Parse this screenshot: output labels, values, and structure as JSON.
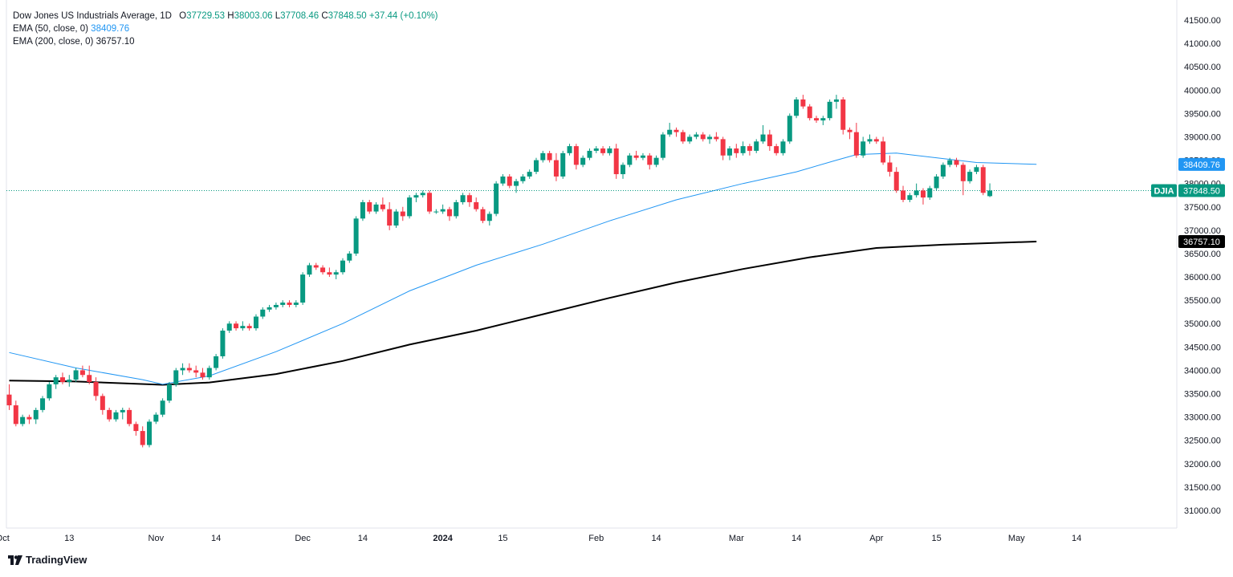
{
  "legend": {
    "title": "Dow Jones US Industrials Average, 1D",
    "o_label": "O",
    "o_val": "37729.53",
    "h_label": "H",
    "h_val": "38003.06",
    "l_label": "L",
    "l_val": "37708.46",
    "c_label": "C",
    "c_val": "37848.50",
    "change": "+37.44 (+0.10%)",
    "ema50_label": "EMA (50, close, 0)",
    "ema50_val": "38409.76",
    "ema200_label": "EMA (200, close, 0)",
    "ema200_val": "36757.10"
  },
  "brand": "TradingView",
  "colors": {
    "up": "#089981",
    "down": "#f23645",
    "ema50": "#2196f3",
    "ema200": "#000000",
    "grid": "#f0f3fa",
    "text": "#131722"
  },
  "chart_data": {
    "type": "candlestick",
    "title": "Dow Jones US Industrials Average, 1D",
    "ylim": [
      30750,
      41750
    ],
    "y_ticks": [
      31000,
      31500,
      32000,
      32500,
      33000,
      33500,
      34000,
      34500,
      35000,
      35500,
      36000,
      36500,
      37000,
      37500,
      38000,
      38500,
      39000,
      39500,
      40000,
      40500,
      41000,
      41500
    ],
    "x_ticks": [
      {
        "label": "Oct",
        "index": -1
      },
      {
        "label": "13",
        "index": 9
      },
      {
        "label": "Nov",
        "index": 22
      },
      {
        "label": "14",
        "index": 31
      },
      {
        "label": "Dec",
        "index": 44
      },
      {
        "label": "14",
        "index": 53
      },
      {
        "label": "2024",
        "index": 65,
        "bold": true
      },
      {
        "label": "15",
        "index": 74
      },
      {
        "label": "Feb",
        "index": 88
      },
      {
        "label": "14",
        "index": 97
      },
      {
        "label": "Mar",
        "index": 109
      },
      {
        "label": "14",
        "index": 118
      },
      {
        "label": "Apr",
        "index": 130
      },
      {
        "label": "15",
        "index": 139
      },
      {
        "label": "May",
        "index": 151
      },
      {
        "label": "14",
        "index": 160
      }
    ],
    "candles": [
      [
        33480,
        33700,
        33150,
        33250
      ],
      [
        33250,
        33350,
        32800,
        32850
      ],
      [
        32850,
        33050,
        32800,
        33000
      ],
      [
        33000,
        33050,
        32850,
        32950
      ],
      [
        32950,
        33200,
        32850,
        33150
      ],
      [
        33150,
        33450,
        33100,
        33400
      ],
      [
        33400,
        33750,
        33350,
        33700
      ],
      [
        33700,
        33900,
        33600,
        33850
      ],
      [
        33850,
        33950,
        33700,
        33750
      ],
      [
        33750,
        33900,
        33650,
        33800
      ],
      [
        33800,
        34050,
        33750,
        34000
      ],
      [
        34000,
        34100,
        33850,
        33900
      ],
      [
        33900,
        34100,
        33700,
        33750
      ],
      [
        33750,
        33850,
        33350,
        33450
      ],
      [
        33450,
        33500,
        33050,
        33150
      ],
      [
        33150,
        33200,
        32900,
        32950
      ],
      [
        32950,
        33150,
        32900,
        33100
      ],
      [
        33100,
        33200,
        32950,
        33150
      ],
      [
        33150,
        33200,
        32800,
        32850
      ],
      [
        32850,
        32900,
        32600,
        32700
      ],
      [
        32700,
        32800,
        32350,
        32400
      ],
      [
        32400,
        32950,
        32350,
        32900
      ],
      [
        32900,
        33100,
        32850,
        33050
      ],
      [
        33050,
        33400,
        33000,
        33350
      ],
      [
        33350,
        33750,
        33300,
        33700
      ],
      [
        33700,
        34050,
        33650,
        34000
      ],
      [
        34000,
        34150,
        33900,
        34050
      ],
      [
        34050,
        34150,
        33950,
        34000
      ],
      [
        34000,
        34100,
        33850,
        33950
      ],
      [
        33950,
        34050,
        33800,
        33850
      ],
      [
        33850,
        34100,
        33800,
        34050
      ],
      [
        34050,
        34350,
        34000,
        34300
      ],
      [
        34300,
        34900,
        34250,
        34850
      ],
      [
        34850,
        35050,
        34800,
        35000
      ],
      [
        35000,
        35050,
        34850,
        34900
      ],
      [
        34900,
        35050,
        34850,
        34950
      ],
      [
        34950,
        35000,
        34850,
        34900
      ],
      [
        34900,
        35200,
        34850,
        35150
      ],
      [
        35150,
        35350,
        35100,
        35300
      ],
      [
        35300,
        35400,
        35250,
        35350
      ],
      [
        35350,
        35450,
        35300,
        35400
      ],
      [
        35400,
        35500,
        35350,
        35450
      ],
      [
        35450,
        35500,
        35350,
        35400
      ],
      [
        35400,
        35500,
        35350,
        35450
      ],
      [
        35450,
        36100,
        35400,
        36050
      ],
      [
        36050,
        36300,
        36000,
        36250
      ],
      [
        36250,
        36300,
        36150,
        36200
      ],
      [
        36200,
        36250,
        36050,
        36100
      ],
      [
        36100,
        36200,
        36000,
        36050
      ],
      [
        36050,
        36150,
        35950,
        36100
      ],
      [
        36100,
        36400,
        36050,
        36350
      ],
      [
        36350,
        36550,
        36300,
        36500
      ],
      [
        36500,
        37300,
        36450,
        37250
      ],
      [
        37250,
        37650,
        37200,
        37600
      ],
      [
        37600,
        37650,
        37350,
        37400
      ],
      [
        37400,
        37600,
        37350,
        37550
      ],
      [
        37550,
        37700,
        37400,
        37450
      ],
      [
        37450,
        37600,
        37000,
        37100
      ],
      [
        37100,
        37450,
        37050,
        37400
      ],
      [
        37400,
        37500,
        37200,
        37300
      ],
      [
        37300,
        37750,
        37250,
        37700
      ],
      [
        37700,
        37800,
        37600,
        37750
      ],
      [
        37750,
        37850,
        37700,
        37800
      ],
      [
        37800,
        37850,
        37350,
        37400
      ],
      [
        37400,
        37450,
        37350,
        37400
      ],
      [
        37400,
        37550,
        37350,
        37450
      ],
      [
        37450,
        37500,
        37200,
        37300
      ],
      [
        37300,
        37650,
        37250,
        37600
      ],
      [
        37600,
        37800,
        37550,
        37750
      ],
      [
        37750,
        37800,
        37500,
        37600
      ],
      [
        37600,
        37700,
        37400,
        37450
      ],
      [
        37450,
        37500,
        37150,
        37200
      ],
      [
        37200,
        37400,
        37100,
        37350
      ],
      [
        37350,
        38050,
        37300,
        38000
      ],
      [
        38000,
        38200,
        37950,
        38150
      ],
      [
        38150,
        38200,
        37900,
        37950
      ],
      [
        37950,
        38100,
        37800,
        38050
      ],
      [
        38050,
        38200,
        38000,
        38150
      ],
      [
        38150,
        38300,
        38100,
        38250
      ],
      [
        38250,
        38550,
        38200,
        38500
      ],
      [
        38500,
        38700,
        38450,
        38650
      ],
      [
        38650,
        38700,
        38450,
        38500
      ],
      [
        38500,
        38650,
        38050,
        38150
      ],
      [
        38150,
        38700,
        38100,
        38650
      ],
      [
        38650,
        38850,
        38600,
        38800
      ],
      [
        38800,
        38850,
        38300,
        38400
      ],
      [
        38400,
        38600,
        38350,
        38550
      ],
      [
        38550,
        38750,
        38500,
        38700
      ],
      [
        38700,
        38800,
        38650,
        38750
      ],
      [
        38750,
        38800,
        38600,
        38650
      ],
      [
        38650,
        38800,
        38600,
        38750
      ],
      [
        38750,
        38850,
        38100,
        38200
      ],
      [
        38200,
        38450,
        38100,
        38400
      ],
      [
        38400,
        38650,
        38350,
        38600
      ],
      [
        38600,
        38700,
        38500,
        38550
      ],
      [
        38550,
        38650,
        38500,
        38600
      ],
      [
        38600,
        38650,
        38300,
        38400
      ],
      [
        38400,
        38600,
        38350,
        38550
      ],
      [
        38550,
        39100,
        38500,
        39050
      ],
      [
        39050,
        39300,
        39000,
        39150
      ],
      [
        39150,
        39200,
        39000,
        39100
      ],
      [
        39100,
        39150,
        38850,
        38900
      ],
      [
        38900,
        39050,
        38850,
        39000
      ],
      [
        39000,
        39100,
        38950,
        39050
      ],
      [
        39050,
        39100,
        38900,
        38950
      ],
      [
        38950,
        39050,
        38850,
        39000
      ],
      [
        39000,
        39100,
        38900,
        38950
      ],
      [
        38950,
        39000,
        38500,
        38600
      ],
      [
        38600,
        38800,
        38500,
        38750
      ],
      [
        38750,
        38850,
        38550,
        38650
      ],
      [
        38650,
        38900,
        38600,
        38800
      ],
      [
        38800,
        38850,
        38600,
        38700
      ],
      [
        38700,
        38950,
        38650,
        38900
      ],
      [
        38900,
        39250,
        38850,
        39050
      ],
      [
        39050,
        39150,
        38700,
        38800
      ],
      [
        38800,
        38850,
        38600,
        38650
      ],
      [
        38650,
        38950,
        38600,
        38900
      ],
      [
        38900,
        39500,
        38850,
        39450
      ],
      [
        39450,
        39850,
        39400,
        39800
      ],
      [
        39800,
        39900,
        39600,
        39650
      ],
      [
        39650,
        39700,
        39350,
        39400
      ],
      [
        39400,
        39450,
        39300,
        39350
      ],
      [
        39350,
        39450,
        39250,
        39400
      ],
      [
        39400,
        39800,
        39350,
        39750
      ],
      [
        39750,
        39900,
        39600,
        39800
      ],
      [
        39800,
        39850,
        39050,
        39150
      ],
      [
        39150,
        39200,
        38950,
        39100
      ],
      [
        39100,
        39300,
        38550,
        38600
      ],
      [
        38600,
        39000,
        38550,
        38900
      ],
      [
        38900,
        39050,
        38850,
        38950
      ],
      [
        38950,
        39000,
        38850,
        38900
      ],
      [
        38900,
        39000,
        38400,
        38450
      ],
      [
        38450,
        38600,
        38150,
        38250
      ],
      [
        38250,
        38350,
        37800,
        37850
      ],
      [
        37850,
        37950,
        37600,
        37650
      ],
      [
        37650,
        37800,
        37600,
        37750
      ],
      [
        37750,
        38000,
        37700,
        37850
      ],
      [
        37850,
        37900,
        37550,
        37700
      ],
      [
        37700,
        37950,
        37650,
        37900
      ],
      [
        37900,
        38200,
        37850,
        38150
      ],
      [
        38150,
        38450,
        38100,
        38400
      ],
      [
        38400,
        38550,
        38350,
        38500
      ],
      [
        38500,
        38550,
        38350,
        38400
      ],
      [
        38400,
        38450,
        37750,
        38050
      ],
      [
        38050,
        38300,
        38000,
        38250
      ],
      [
        38250,
        38400,
        38200,
        38350
      ],
      [
        38350,
        38400,
        37750,
        37800
      ],
      [
        37729.53,
        38003.06,
        37708.46,
        37848.5
      ]
    ],
    "ema50": [
      [
        0,
        34380
      ],
      [
        10,
        34050
      ],
      [
        20,
        33800
      ],
      [
        23,
        33700
      ],
      [
        30,
        33880
      ],
      [
        40,
        34400
      ],
      [
        50,
        35000
      ],
      [
        60,
        35700
      ],
      [
        70,
        36250
      ],
      [
        80,
        36700
      ],
      [
        90,
        37200
      ],
      [
        100,
        37650
      ],
      [
        110,
        38000
      ],
      [
        118,
        38250
      ],
      [
        124,
        38500
      ],
      [
        127,
        38620
      ],
      [
        133,
        38650
      ],
      [
        145,
        38450
      ],
      [
        154,
        38410
      ]
    ],
    "ema200": [
      [
        0,
        33780
      ],
      [
        10,
        33760
      ],
      [
        23,
        33690
      ],
      [
        30,
        33740
      ],
      [
        40,
        33920
      ],
      [
        50,
        34200
      ],
      [
        60,
        34550
      ],
      [
        70,
        34850
      ],
      [
        80,
        35200
      ],
      [
        90,
        35550
      ],
      [
        100,
        35880
      ],
      [
        110,
        36170
      ],
      [
        120,
        36420
      ],
      [
        130,
        36620
      ],
      [
        140,
        36690
      ],
      [
        154,
        36757
      ]
    ],
    "price_lines": [
      {
        "label": "DJIA",
        "value": 37848.5,
        "text": "37848.50"
      },
      {
        "label": "",
        "value": 38409.76,
        "text": "38409.76"
      },
      {
        "label": "",
        "value": 36757.1,
        "text": "36757.10"
      }
    ]
  }
}
